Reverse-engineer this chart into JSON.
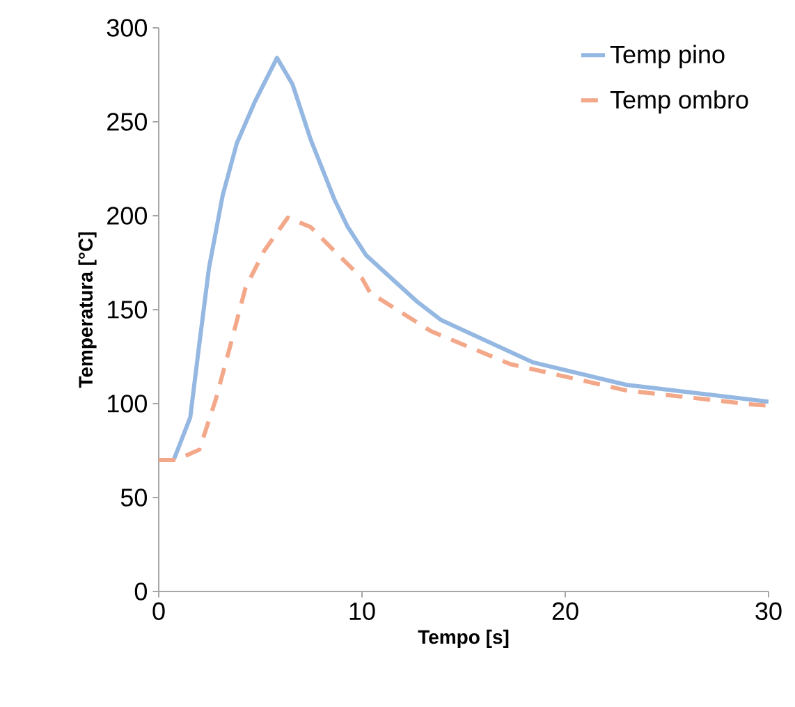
{
  "chart_data": {
    "type": "line",
    "xlabel": "Tempo [s]",
    "ylabel": "Temperatura [°C]",
    "xlim": [
      0,
      30
    ],
    "ylim": [
      0,
      300
    ],
    "xticks": [
      0,
      10,
      20,
      30
    ],
    "yticks": [
      0,
      50,
      100,
      150,
      200,
      250,
      300
    ],
    "grid": false,
    "legend": "top right",
    "marker": "none",
    "series": [
      {
        "name": "Temp pino",
        "color": "#95b8e2",
        "line_style": "solid",
        "x": [
          0.75,
          1.55,
          2.0,
          2.47,
          3.15,
          3.84,
          4.73,
          5.82,
          6.58,
          7.47,
          8.63,
          9.3,
          10.2,
          12.74,
          13.9,
          18.4,
          23,
          30
        ],
        "values": [
          70.4,
          92.6,
          132,
          172,
          211,
          238.5,
          260.7,
          284,
          270,
          240.7,
          209,
          194,
          179,
          154,
          144.4,
          122,
          110,
          101
        ]
      },
      {
        "name": "Temp ombro",
        "color": "#f3a88a",
        "line_style": "dashed",
        "x": [
          0,
          0.87,
          2.0,
          2.8,
          3.5,
          4.27,
          5.2,
          6.35,
          7.47,
          8.85,
          10.0,
          10.4,
          12.3,
          13.4,
          17.3,
          23,
          29.2,
          30
        ],
        "values": [
          70,
          70,
          75.5,
          102,
          130,
          161.7,
          181.5,
          199,
          194,
          179,
          166.7,
          159,
          146,
          138.5,
          121,
          107,
          99.5,
          99
        ]
      }
    ]
  }
}
